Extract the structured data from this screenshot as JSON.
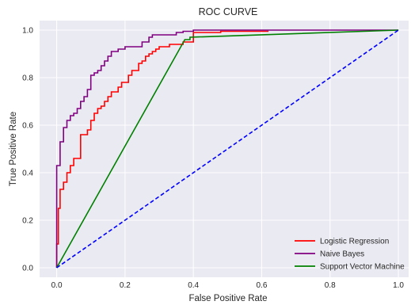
{
  "chart_data": {
    "type": "line",
    "title": "ROC CURVE",
    "xlabel": "False Positive Rate",
    "ylabel": "True Positive Rate",
    "xlim": [
      -0.05,
      1.03
    ],
    "ylim": [
      -0.04,
      1.04
    ],
    "xticks": [
      0.0,
      0.2,
      0.4,
      0.6,
      0.8,
      1.0
    ],
    "xtick_labels": [
      "0.0",
      "0.2",
      "0.4",
      "0.6",
      "0.8",
      "1.0"
    ],
    "yticks": [
      0.0,
      0.2,
      0.4,
      0.6,
      0.8,
      1.0
    ],
    "ytick_labels": [
      "0.0",
      "0.2",
      "0.4",
      "0.6",
      "0.8",
      "1.0"
    ],
    "grid": true,
    "legend_position": "lower-right",
    "series": [
      {
        "name": "Logistic Regression",
        "color": "#ff0000",
        "step": true,
        "x": [
          0,
          0,
          0.005,
          0.005,
          0.01,
          0.01,
          0.02,
          0.02,
          0.03,
          0.03,
          0.04,
          0.04,
          0.05,
          0.05,
          0.07,
          0.07,
          0.08,
          0.08,
          0.09,
          0.09,
          0.1,
          0.1,
          0.11,
          0.11,
          0.12,
          0.12,
          0.13,
          0.13,
          0.14,
          0.14,
          0.15,
          0.15,
          0.16,
          0.16,
          0.18,
          0.18,
          0.19,
          0.19,
          0.21,
          0.21,
          0.22,
          0.22,
          0.24,
          0.24,
          0.25,
          0.25,
          0.26,
          0.26,
          0.27,
          0.27,
          0.28,
          0.28,
          0.29,
          0.29,
          0.3,
          0.3,
          0.33,
          0.33,
          0.37,
          0.37,
          0.4,
          0.4,
          0.48,
          0.48,
          0.62
        ],
        "y": [
          0,
          0.1,
          0.1,
          0.25,
          0.25,
          0.33,
          0.33,
          0.36,
          0.36,
          0.4,
          0.4,
          0.43,
          0.43,
          0.46,
          0.46,
          0.56,
          0.56,
          0.56,
          0.56,
          0.58,
          0.58,
          0.62,
          0.62,
          0.65,
          0.65,
          0.67,
          0.67,
          0.68,
          0.68,
          0.7,
          0.7,
          0.72,
          0.72,
          0.74,
          0.74,
          0.76,
          0.76,
          0.78,
          0.78,
          0.81,
          0.81,
          0.83,
          0.83,
          0.86,
          0.86,
          0.87,
          0.87,
          0.89,
          0.89,
          0.9,
          0.9,
          0.91,
          0.91,
          0.92,
          0.92,
          0.93,
          0.93,
          0.94,
          0.94,
          0.95,
          0.95,
          0.99,
          0.99,
          0.995,
          0.995
        ]
      },
      {
        "name": "Naive Bayes",
        "color": "#800080",
        "step": true,
        "x": [
          0,
          0,
          0.01,
          0.01,
          0.02,
          0.02,
          0.03,
          0.03,
          0.04,
          0.04,
          0.05,
          0.05,
          0.06,
          0.06,
          0.07,
          0.07,
          0.08,
          0.08,
          0.09,
          0.09,
          0.1,
          0.1,
          0.11,
          0.11,
          0.12,
          0.12,
          0.13,
          0.13,
          0.14,
          0.14,
          0.15,
          0.15,
          0.16,
          0.16,
          0.17,
          0.17,
          0.18,
          0.18,
          0.2,
          0.2,
          0.25,
          0.25,
          0.27,
          0.27,
          0.28,
          0.28,
          0.3,
          0.3,
          0.35,
          0.35,
          0.37,
          0.37,
          0.4,
          0.4,
          0.45,
          0.45,
          1.0
        ],
        "y": [
          0,
          0.43,
          0.43,
          0.53,
          0.53,
          0.59,
          0.59,
          0.62,
          0.62,
          0.64,
          0.64,
          0.65,
          0.65,
          0.67,
          0.67,
          0.7,
          0.7,
          0.72,
          0.72,
          0.75,
          0.75,
          0.81,
          0.81,
          0.82,
          0.82,
          0.83,
          0.83,
          0.85,
          0.85,
          0.87,
          0.87,
          0.89,
          0.89,
          0.91,
          0.91,
          0.91,
          0.91,
          0.92,
          0.92,
          0.93,
          0.93,
          0.95,
          0.95,
          0.97,
          0.97,
          0.98,
          0.98,
          0.98,
          0.98,
          0.99,
          0.99,
          0.995,
          0.995,
          1.0,
          1.0,
          1.0,
          1.0
        ]
      },
      {
        "name": "Support Vector Machine",
        "color": "#008000",
        "step": false,
        "x": [
          0,
          0.375,
          0.375,
          0.39,
          0.39,
          1.0
        ],
        "y": [
          0,
          0.96,
          0.96,
          0.96,
          0.97,
          1.0
        ]
      }
    ],
    "reference_line": {
      "color": "#0000ff",
      "dashed": true,
      "x": [
        0,
        1
      ],
      "y": [
        0,
        1
      ]
    }
  }
}
